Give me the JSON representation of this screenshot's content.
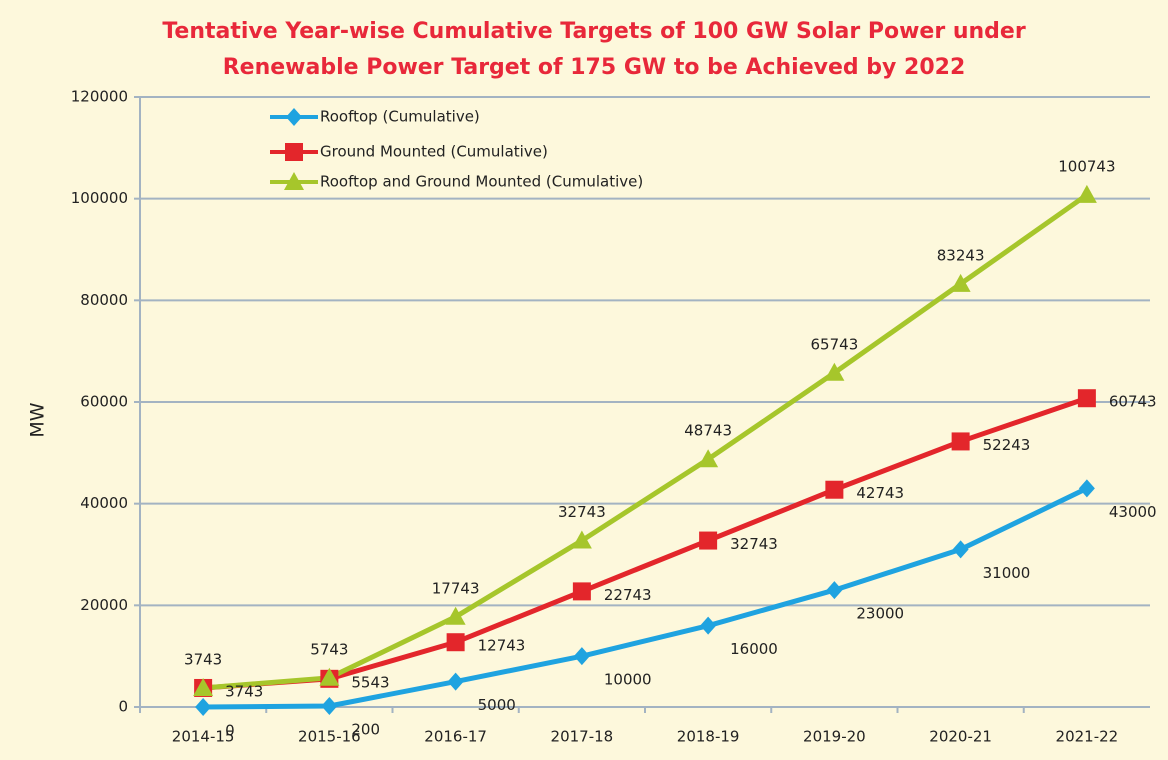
{
  "chart_data": {
    "type": "line",
    "title": [
      "Tentative Year-wise Cumulative Targets of 100 GW Solar Power under",
      "Renewable Power Target of 175 GW to be Achieved by 2022"
    ],
    "y_label": "MW",
    "categories": [
      "2014-15",
      "2015-16",
      "2016-17",
      "2017-18",
      "2018-19",
      "2019-20",
      "2020-21",
      "2021-22"
    ],
    "series": [
      {
        "name": "Rooftop (Cumulative)",
        "color": "#1fa3e0",
        "marker": "diamond",
        "values": [
          0,
          200,
          5000,
          10000,
          16000,
          23000,
          31000,
          43000
        ]
      },
      {
        "name": "Ground Mounted  (Cumulative)",
        "color": "#e3262b",
        "marker": "square",
        "values": [
          3743,
          5543,
          12743,
          22743,
          32743,
          42743,
          52243,
          60743
        ]
      },
      {
        "name": "Rooftop and Ground Mounted (Cumulative)",
        "color": "#a6c62b",
        "marker": "triangle",
        "values": [
          3743,
          5743,
          17743,
          32743,
          48743,
          65743,
          83243,
          100743
        ]
      }
    ],
    "ylim": [
      0,
      120000
    ],
    "yticks": [
      0,
      20000,
      40000,
      60000,
      80000,
      100000,
      120000
    ],
    "grid": true,
    "legend": "top-left"
  }
}
